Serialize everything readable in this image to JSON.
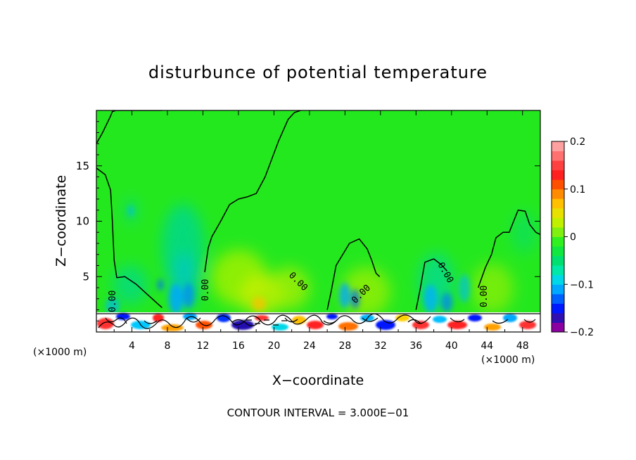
{
  "chart_data": {
    "type": "heatmap",
    "title": "disturbunce of potential temperature",
    "xlabel": "X−coordinate",
    "ylabel": "Z−coordinate",
    "x_unit_left": "(×1000 m)",
    "x_unit_right": "(×1000 m)",
    "footer": "CONTOUR INTERVAL = 3.000E−01",
    "xlim": [
      0,
      50
    ],
    "ylim": [
      0,
      20
    ],
    "x_ticks": [
      "4",
      "8",
      "12",
      "16",
      "20",
      "24",
      "28",
      "32",
      "36",
      "40",
      "44",
      "48"
    ],
    "y_ticks": [
      "5",
      "10",
      "15"
    ],
    "colorbar": {
      "range": [
        -0.2,
        0.2
      ],
      "tick_labels": [
        "0.2",
        "0.1",
        "0",
        "−0.1",
        "−0.2"
      ],
      "colors": [
        "#8b00a0",
        "#3010b0",
        "#0018ff",
        "#0060ff",
        "#00a8ff",
        "#00d8e8",
        "#00e8a8",
        "#00e070",
        "#10e840",
        "#30f020",
        "#80f010",
        "#c0f000",
        "#e8e000",
        "#ffc000",
        "#ff8c00",
        "#ff5000",
        "#ff2020",
        "#ff4040",
        "#ff7070",
        "#ffa0a0"
      ]
    },
    "contour_labels": [
      "0.00",
      "0.00",
      "0.00",
      "0.00",
      "0.00",
      "0.00"
    ],
    "series": [
      {
        "name": "",
        "x": [
          0,
          0.7,
          1.3,
          1.6,
          1.8,
          2.2,
          3.5,
          4.5,
          6.0,
          7.4
        ],
        "y": [
          17,
          18,
          19,
          19.5,
          19.9,
          20,
          20,
          20,
          20,
          20
        ]
      },
      {
        "name": "",
        "x": [
          0,
          1.0,
          1.6,
          1.8,
          2.0,
          2.3,
          3.2,
          4.5,
          6.0,
          7.4
        ],
        "y": [
          14.8,
          14.2,
          12.8,
          10.0,
          6.5,
          4.9,
          5.0,
          4.3,
          3.2,
          2.2
        ]
      },
      {
        "name": "",
        "x": [
          12.2,
          12.6,
          13.0,
          14.0,
          15.0,
          16.0,
          17.0,
          18.0,
          19.0,
          20.5,
          21.6,
          22.3,
          23.0
        ],
        "y": [
          5.4,
          7.6,
          8.6,
          10.0,
          11.5,
          12.0,
          12.2,
          12.5,
          14.0,
          17.2,
          19.2,
          19.8,
          20.0
        ]
      },
      {
        "name": "",
        "x": [
          26.0,
          26.4,
          27.0,
          28.5,
          29.6,
          30.5,
          31.0,
          31.5,
          31.9
        ],
        "y": [
          2.0,
          3.5,
          6.0,
          8.0,
          8.4,
          7.5,
          6.5,
          5.3,
          5.0
        ]
      },
      {
        "name": "",
        "x": [
          36.0,
          36.5,
          37.0,
          38.0,
          38.8,
          39.5
        ],
        "y": [
          2.0,
          4.0,
          6.3,
          6.6,
          6.1,
          5.5
        ]
      },
      {
        "name": "",
        "x": [
          43.0,
          43.8,
          44.5,
          45.0,
          45.8,
          46.5,
          47.0,
          47.5,
          48.3,
          48.8,
          49.5,
          50.0
        ],
        "y": [
          4.0,
          5.8,
          7.0,
          8.5,
          9.0,
          9.0,
          10.0,
          11.0,
          10.9,
          9.7,
          9.0,
          8.8
        ]
      }
    ]
  }
}
